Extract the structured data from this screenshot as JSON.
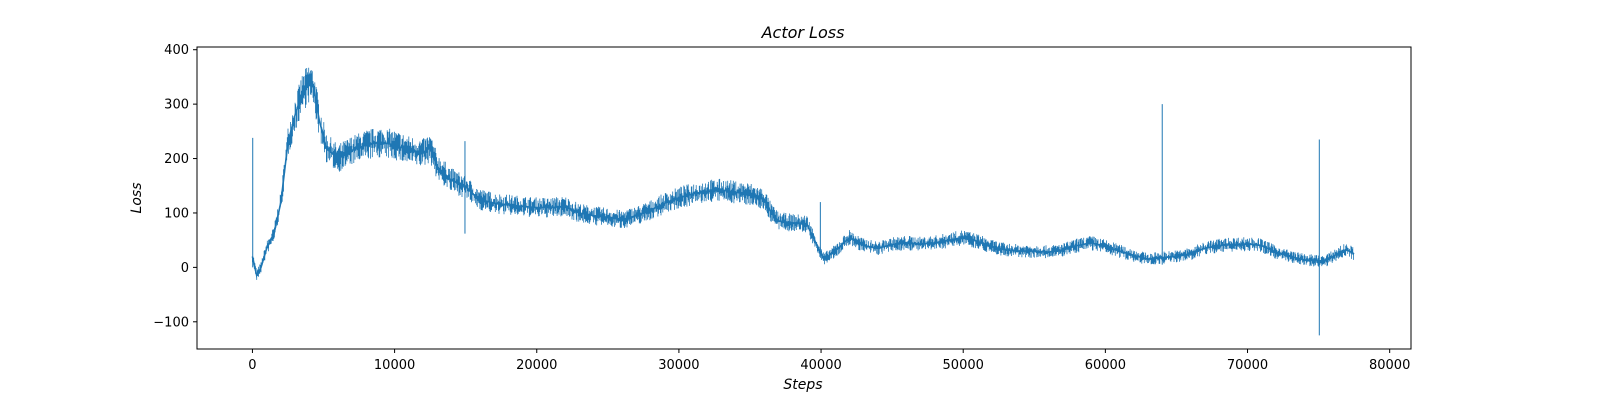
{
  "chart_data": {
    "type": "line",
    "title": "Actor Loss",
    "xlabel": "Steps",
    "ylabel": "Loss",
    "xlim": [
      -3900,
      81500
    ],
    "ylim": [
      -150,
      405
    ],
    "xticks": [
      0,
      10000,
      20000,
      30000,
      40000,
      50000,
      60000,
      70000,
      80000
    ],
    "xtick_labels": [
      "0",
      "10000",
      "20000",
      "30000",
      "40000",
      "50000",
      "60000",
      "70000",
      "80000"
    ],
    "yticks": [
      -100,
      0,
      100,
      200,
      300,
      400
    ],
    "ytick_labels": [
      "−100",
      "0",
      "100",
      "200",
      "300",
      "400"
    ],
    "grid": false,
    "series": [
      {
        "color": "#1f77b4",
        "x": [
          0,
          300,
          600,
          1000,
          1500,
          2000,
          2500,
          3000,
          3500,
          4000,
          4300,
          4700,
          5200,
          6000,
          7000,
          8000,
          9000,
          10000,
          11000,
          12000,
          12500,
          13000,
          14000,
          15000,
          15500,
          16000,
          17000,
          18000,
          19000,
          20000,
          21000,
          22000,
          23000,
          24000,
          25000,
          26000,
          27000,
          28000,
          29000,
          30000,
          31000,
          32000,
          33000,
          34000,
          35000,
          36000,
          36500,
          37000,
          38000,
          39000,
          40000,
          40200,
          41000,
          42000,
          43000,
          44000,
          45000,
          46000,
          47000,
          48000,
          49000,
          50000,
          51000,
          52000,
          53000,
          54000,
          55000,
          56000,
          57000,
          58000,
          59000,
          60000,
          61000,
          62000,
          63000,
          64000,
          65000,
          66000,
          67000,
          68000,
          69000,
          70000,
          71000,
          72000,
          73000,
          74000,
          75000,
          75500,
          76000,
          76500,
          77000,
          77500
        ],
        "y": [
          20,
          -15,
          0,
          35,
          60,
          120,
          230,
          280,
          320,
          340,
          330,
          270,
          220,
          200,
          215,
          225,
          230,
          225,
          215,
          210,
          220,
          185,
          160,
          148,
          135,
          125,
          118,
          115,
          112,
          110,
          110,
          112,
          100,
          95,
          92,
          88,
          95,
          105,
          118,
          128,
          135,
          140,
          142,
          138,
          135,
          125,
          100,
          85,
          82,
          80,
          25,
          15,
          30,
          55,
          40,
          35,
          42,
          45,
          43,
          45,
          50,
          55,
          48,
          38,
          32,
          30,
          30,
          28,
          32,
          40,
          45,
          38,
          30,
          22,
          15,
          18,
          20,
          25,
          35,
          40,
          42,
          43,
          40,
          28,
          20,
          14,
          12,
          12,
          20,
          28,
          32,
          25
        ]
      }
    ],
    "spikes": [
      {
        "x": 20,
        "ymin": 0,
        "ymax": 238
      },
      {
        "x": 14950,
        "ymin": 62,
        "ymax": 232
      },
      {
        "x": 39950,
        "ymin": 20,
        "ymax": 120
      },
      {
        "x": 64000,
        "ymin": 5,
        "ymax": 300
      },
      {
        "x": 75050,
        "ymin": -125,
        "ymax": 235
      }
    ]
  }
}
